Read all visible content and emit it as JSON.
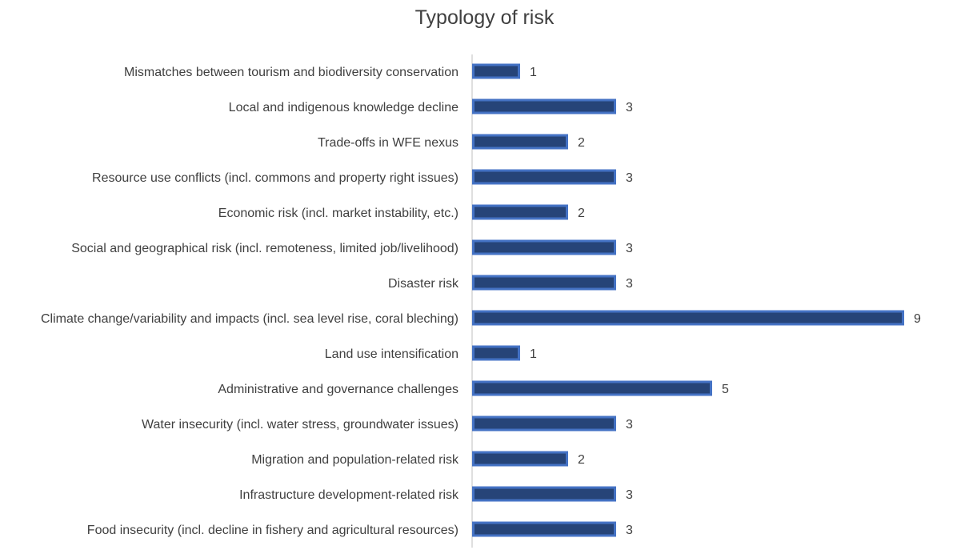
{
  "chart_data": {
    "type": "bar",
    "orientation": "horizontal",
    "title": "Typology of risk",
    "xlabel": "",
    "ylabel": "",
    "grid": false,
    "legend": "none",
    "bar_color": "#264478",
    "bar_edge_color": "#4472C4",
    "xlim": [
      0,
      9
    ],
    "categories": [
      "Mismatches between tourism and biodiversity conservation",
      "Local and indigenous knowledge decline",
      "Trade-offs in WFE nexus",
      "Resource use conflicts (incl. commons and property right issues)",
      "Economic risk (incl. market instability, etc.)",
      "Social and geographical risk (incl. remoteness, limited job/livelihood)",
      "Disaster risk",
      "Climate change/variability and impacts (incl. sea level rise, coral bleching)",
      "Land use intensification",
      "Administrative and governance challenges",
      "Water insecurity (incl. water stress, groundwater issues)",
      "Migration and population-related risk",
      "Infrastructure development-related risk",
      "Food insecurity (incl. decline in fishery and agricultural resources)"
    ],
    "values": [
      1,
      3,
      2,
      3,
      2,
      3,
      3,
      9,
      1,
      5,
      3,
      2,
      3,
      3
    ]
  }
}
